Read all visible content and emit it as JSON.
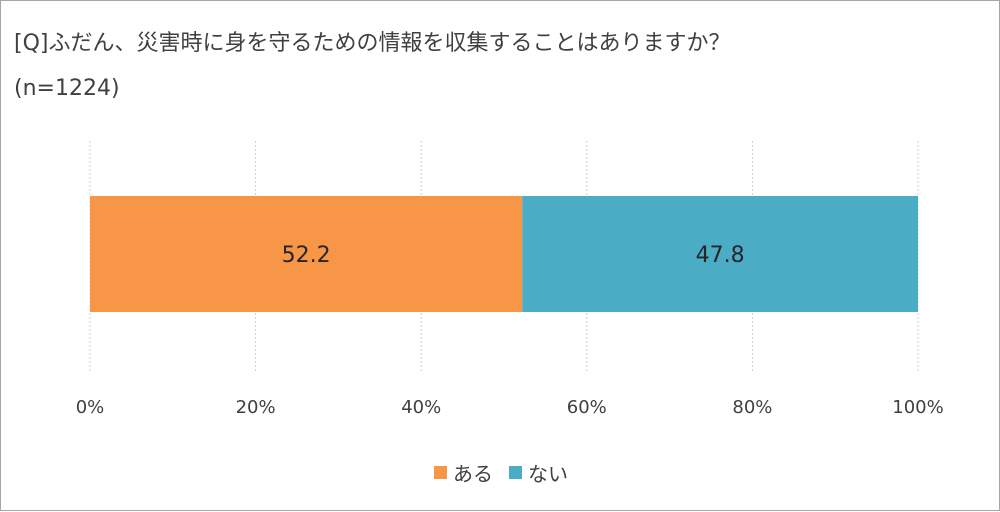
{
  "chart_data": {
    "type": "bar",
    "orientation": "horizontal",
    "stacked": true,
    "title": "[Q]ふだん、災害時に身を守るための情報を収集することはありますか？",
    "subtitle": "(n=1224)",
    "xlim": [
      0,
      100
    ],
    "x_ticks": [
      "0%",
      "20%",
      "40%",
      "60%",
      "80%",
      "100%"
    ],
    "grid": true,
    "legend_position": "bottom",
    "series": [
      {
        "name": "ある",
        "values": [
          52.2
        ],
        "color": "#F79646",
        "label": "52.2"
      },
      {
        "name": "ない",
        "values": [
          47.8
        ],
        "color": "#4BACC6",
        "label": "47.8"
      }
    ]
  }
}
